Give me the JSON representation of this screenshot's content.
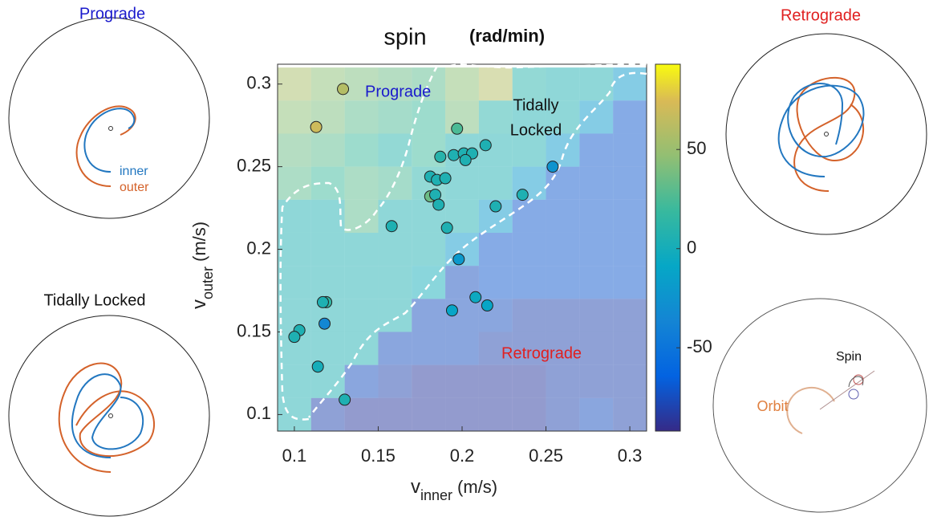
{
  "chart_data": {
    "type": "heatmap",
    "title": "spin",
    "title_unit": "(rad/min)",
    "xlabel": {
      "main": "v",
      "sub": "inner",
      "unit": "(m/s)"
    },
    "ylabel": {
      "main": "v",
      "sub": "outer",
      "unit": "(m/s)"
    },
    "xlim": [
      0.09,
      0.31
    ],
    "ylim": [
      0.09,
      0.312
    ],
    "xticks": [
      0.1,
      0.15,
      0.2,
      0.25,
      0.3
    ],
    "yticks": [
      0.1,
      0.15,
      0.2,
      0.25,
      0.3
    ],
    "clim": [
      -92,
      93
    ],
    "cticks": [
      -50,
      0,
      50
    ],
    "heatmap": {
      "x": [
        0.1,
        0.12,
        0.14,
        0.16,
        0.18,
        0.2,
        0.22,
        0.24,
        0.26,
        0.28,
        0.3
      ],
      "y": [
        0.3,
        0.28,
        0.26,
        0.24,
        0.22,
        0.2,
        0.18,
        0.16,
        0.14,
        0.12,
        0.1
      ],
      "z": [
        [
          55,
          45,
          40,
          35,
          30,
          45,
          60,
          10,
          5,
          5,
          -20
        ],
        [
          45,
          40,
          30,
          25,
          20,
          40,
          10,
          5,
          5,
          -20,
          -70
        ],
        [
          35,
          30,
          20,
          10,
          20,
          5,
          5,
          5,
          -20,
          -70,
          -70
        ],
        [
          30,
          20,
          30,
          25,
          10,
          5,
          5,
          -20,
          -70,
          -70,
          -70
        ],
        [
          5,
          5,
          30,
          5,
          5,
          5,
          -20,
          -70,
          -70,
          -70,
          -70
        ],
        [
          5,
          5,
          5,
          5,
          5,
          -20,
          -70,
          -70,
          -70,
          -70,
          -70
        ],
        [
          5,
          5,
          5,
          5,
          0,
          -75,
          -70,
          -70,
          -70,
          -70,
          -70
        ],
        [
          5,
          5,
          5,
          5,
          -75,
          -75,
          -75,
          -80,
          -80,
          -80,
          -80
        ],
        [
          5,
          5,
          5,
          -75,
          -75,
          -75,
          -80,
          -80,
          -80,
          -80,
          -80
        ],
        [
          5,
          5,
          -75,
          -80,
          -85,
          -85,
          -85,
          -85,
          -80,
          -80,
          -80
        ],
        [
          5,
          -80,
          -85,
          -85,
          -85,
          -85,
          -85,
          -85,
          -80,
          -75,
          -80
        ]
      ]
    },
    "points": {
      "x": [
        0.129,
        0.113,
        0.197,
        0.214,
        0.187,
        0.195,
        0.201,
        0.206,
        0.202,
        0.254,
        0.181,
        0.185,
        0.19,
        0.181,
        0.184,
        0.186,
        0.22,
        0.236,
        0.158,
        0.191,
        0.198,
        0.119,
        0.117,
        0.118,
        0.208,
        0.215,
        0.194,
        0.103,
        0.1,
        0.114,
        0.13
      ],
      "y": [
        0.297,
        0.274,
        0.273,
        0.263,
        0.256,
        0.257,
        0.258,
        0.258,
        0.254,
        0.25,
        0.244,
        0.242,
        0.243,
        0.232,
        0.233,
        0.227,
        0.226,
        0.233,
        0.214,
        0.213,
        0.194,
        0.168,
        0.168,
        0.155,
        0.171,
        0.166,
        0.163,
        0.151,
        0.147,
        0.129,
        0.109
      ],
      "values": [
        60,
        70,
        25,
        5,
        10,
        5,
        5,
        5,
        5,
        -25,
        5,
        5,
        5,
        35,
        5,
        5,
        5,
        5,
        5,
        5,
        -20,
        15,
        5,
        -35,
        -5,
        -10,
        -10,
        5,
        5,
        0,
        5
      ]
    },
    "annotations": {
      "prograde": "Prograde",
      "tidally": "Tidally",
      "locked": "Locked",
      "retrograde": "Retrograde"
    }
  },
  "panels": {
    "prograde": {
      "title": "Prograde",
      "inner": "inner",
      "outer": "outer"
    },
    "locked": {
      "title": "Tidally Locked"
    },
    "retrograde": {
      "title": "Retrograde"
    },
    "schematic": {
      "spin": "Spin",
      "orbit": "Orbit"
    }
  }
}
